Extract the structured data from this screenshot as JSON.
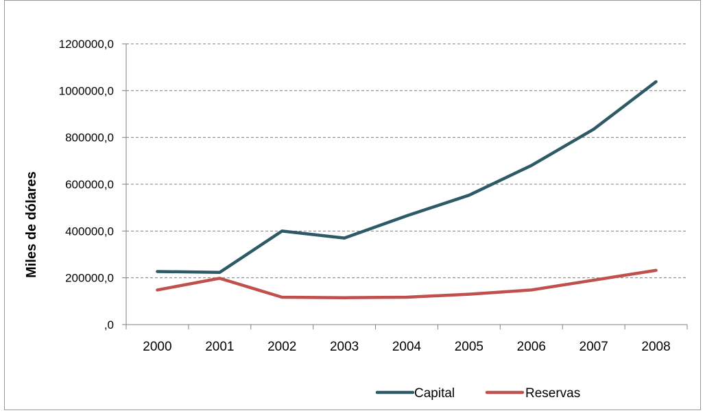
{
  "chart_data": {
    "type": "line",
    "title": "",
    "xlabel": "",
    "ylabel": "Miles de dólares",
    "ylim": [
      0,
      1200000
    ],
    "yticks": [
      0,
      200000,
      400000,
      600000,
      800000,
      1000000,
      1200000
    ],
    "ytick_labels": [
      ",0",
      "200000,0",
      "400000,0",
      "600000,0",
      "800000,0",
      "1000000,0",
      "1200000,0"
    ],
    "categories": [
      "2000",
      "2001",
      "2002",
      "2003",
      "2004",
      "2005",
      "2006",
      "2007",
      "2008"
    ],
    "grid": true,
    "legend_position": "bottom-right",
    "series": [
      {
        "name": "Capital",
        "color": "#2e5a66",
        "values": [
          227000,
          223000,
          400000,
          370000,
          465000,
          553000,
          680000,
          835000,
          1038000
        ]
      },
      {
        "name": "Reservas",
        "color": "#c0504d",
        "values": [
          148000,
          198000,
          117000,
          115000,
          117000,
          130000,
          148000,
          190000,
          232000
        ]
      }
    ]
  }
}
